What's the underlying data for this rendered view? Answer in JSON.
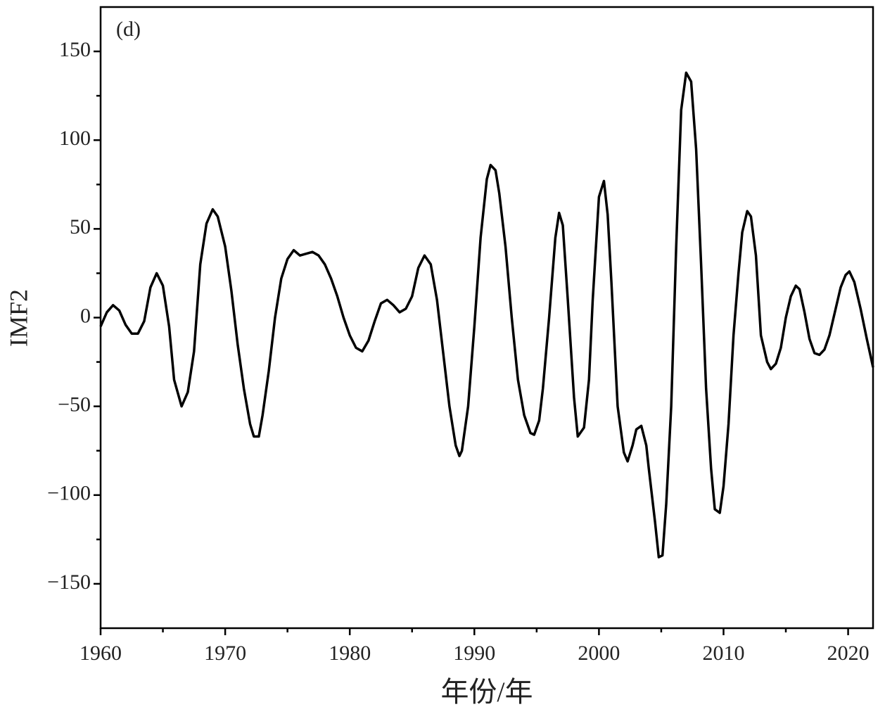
{
  "chart_data": {
    "type": "line",
    "annotation": "(d)",
    "x_label": "年份/年",
    "y_label": "IMF2",
    "xlim": [
      1960,
      2022
    ],
    "ylim": [
      -175,
      175
    ],
    "xticks": [
      1960,
      1970,
      1980,
      1990,
      2000,
      2010,
      2020
    ],
    "yticks": [
      {
        "value": -150,
        "label": "−150"
      },
      {
        "value": -100,
        "label": "−100"
      },
      {
        "value": -50,
        "label": "−50"
      },
      0,
      50,
      100,
      150
    ],
    "series": [
      {
        "name": "IMF2",
        "color": "#000000",
        "x": [
          1960.0,
          1960.5,
          1961.0,
          1961.5,
          1962.0,
          1962.5,
          1963.0,
          1963.5,
          1964.0,
          1964.5,
          1965.0,
          1965.5,
          1965.9,
          1966.5,
          1967.0,
          1967.5,
          1968.0,
          1968.5,
          1969.0,
          1969.4,
          1970.0,
          1970.5,
          1971.0,
          1971.5,
          1972.0,
          1972.3,
          1972.7,
          1973.0,
          1973.5,
          1974.0,
          1974.5,
          1975.0,
          1975.5,
          1976.0,
          1976.5,
          1977.0,
          1977.5,
          1978.0,
          1978.5,
          1979.0,
          1979.5,
          1980.0,
          1980.5,
          1981.0,
          1981.5,
          1982.0,
          1982.5,
          1983.0,
          1983.5,
          1984.0,
          1984.5,
          1985.0,
          1985.5,
          1986.0,
          1986.5,
          1987.0,
          1987.5,
          1988.0,
          1988.5,
          1988.8,
          1989.0,
          1989.5,
          1990.0,
          1990.5,
          1991.0,
          1991.3,
          1991.7,
          1992.0,
          1992.5,
          1993.0,
          1993.5,
          1994.0,
          1994.5,
          1994.8,
          1995.2,
          1995.5,
          1996.0,
          1996.5,
          1996.8,
          1997.1,
          1997.5,
          1998.0,
          1998.3,
          1998.8,
          1999.2,
          1999.5,
          2000.0,
          2000.4,
          2000.7,
          2001.0,
          2001.5,
          2002.0,
          2002.3,
          2002.7,
          2003.0,
          2003.4,
          2003.8,
          2004.0,
          2004.5,
          2004.8,
          2005.1,
          2005.4,
          2005.8,
          2006.2,
          2006.6,
          2007.0,
          2007.4,
          2007.8,
          2008.2,
          2008.6,
          2009.0,
          2009.3,
          2009.7,
          2010.0,
          2010.4,
          2010.8,
          2011.2,
          2011.5,
          2011.9,
          2012.2,
          2012.6,
          2013.0,
          2013.5,
          2013.8,
          2014.2,
          2014.6,
          2015.0,
          2015.4,
          2015.8,
          2016.1,
          2016.5,
          2016.9,
          2017.3,
          2017.7,
          2018.1,
          2018.5,
          2019.0,
          2019.4,
          2019.8,
          2020.1,
          2020.5,
          2021.0,
          2021.5,
          2022.0
        ],
        "values": [
          -5,
          3,
          7,
          4,
          -4,
          -9,
          -9,
          -2,
          17,
          25,
          18,
          -5,
          -35,
          -50,
          -42,
          -19,
          30,
          53,
          61,
          57,
          40,
          15,
          -15,
          -40,
          -60,
          -67,
          -67,
          -55,
          -30,
          0,
          22,
          33,
          38,
          35,
          36,
          37,
          35,
          30,
          22,
          12,
          0,
          -10,
          -17,
          -19,
          -13,
          -2,
          8,
          10,
          7,
          3,
          5,
          12,
          28,
          35,
          30,
          10,
          -20,
          -50,
          -72,
          -78,
          -75,
          -50,
          -5,
          45,
          78,
          86,
          83,
          70,
          40,
          0,
          -35,
          -55,
          -65,
          -66,
          -58,
          -40,
          0,
          45,
          59,
          52,
          10,
          -45,
          -67,
          -62,
          -35,
          10,
          68,
          77,
          58,
          20,
          -50,
          -76,
          -81,
          -72,
          -63,
          -61,
          -72,
          -85,
          -115,
          -135,
          -134,
          -105,
          -50,
          40,
          117,
          138,
          133,
          95,
          30,
          -40,
          -85,
          -108,
          -110,
          -95,
          -60,
          -10,
          25,
          48,
          60,
          57,
          35,
          -10,
          -25,
          -29,
          -26,
          -17,
          0,
          12,
          18,
          16,
          3,
          -12,
          -20,
          -21,
          -18,
          -10,
          5,
          17,
          24,
          26,
          20,
          5,
          -12,
          -28
        ]
      }
    ]
  }
}
